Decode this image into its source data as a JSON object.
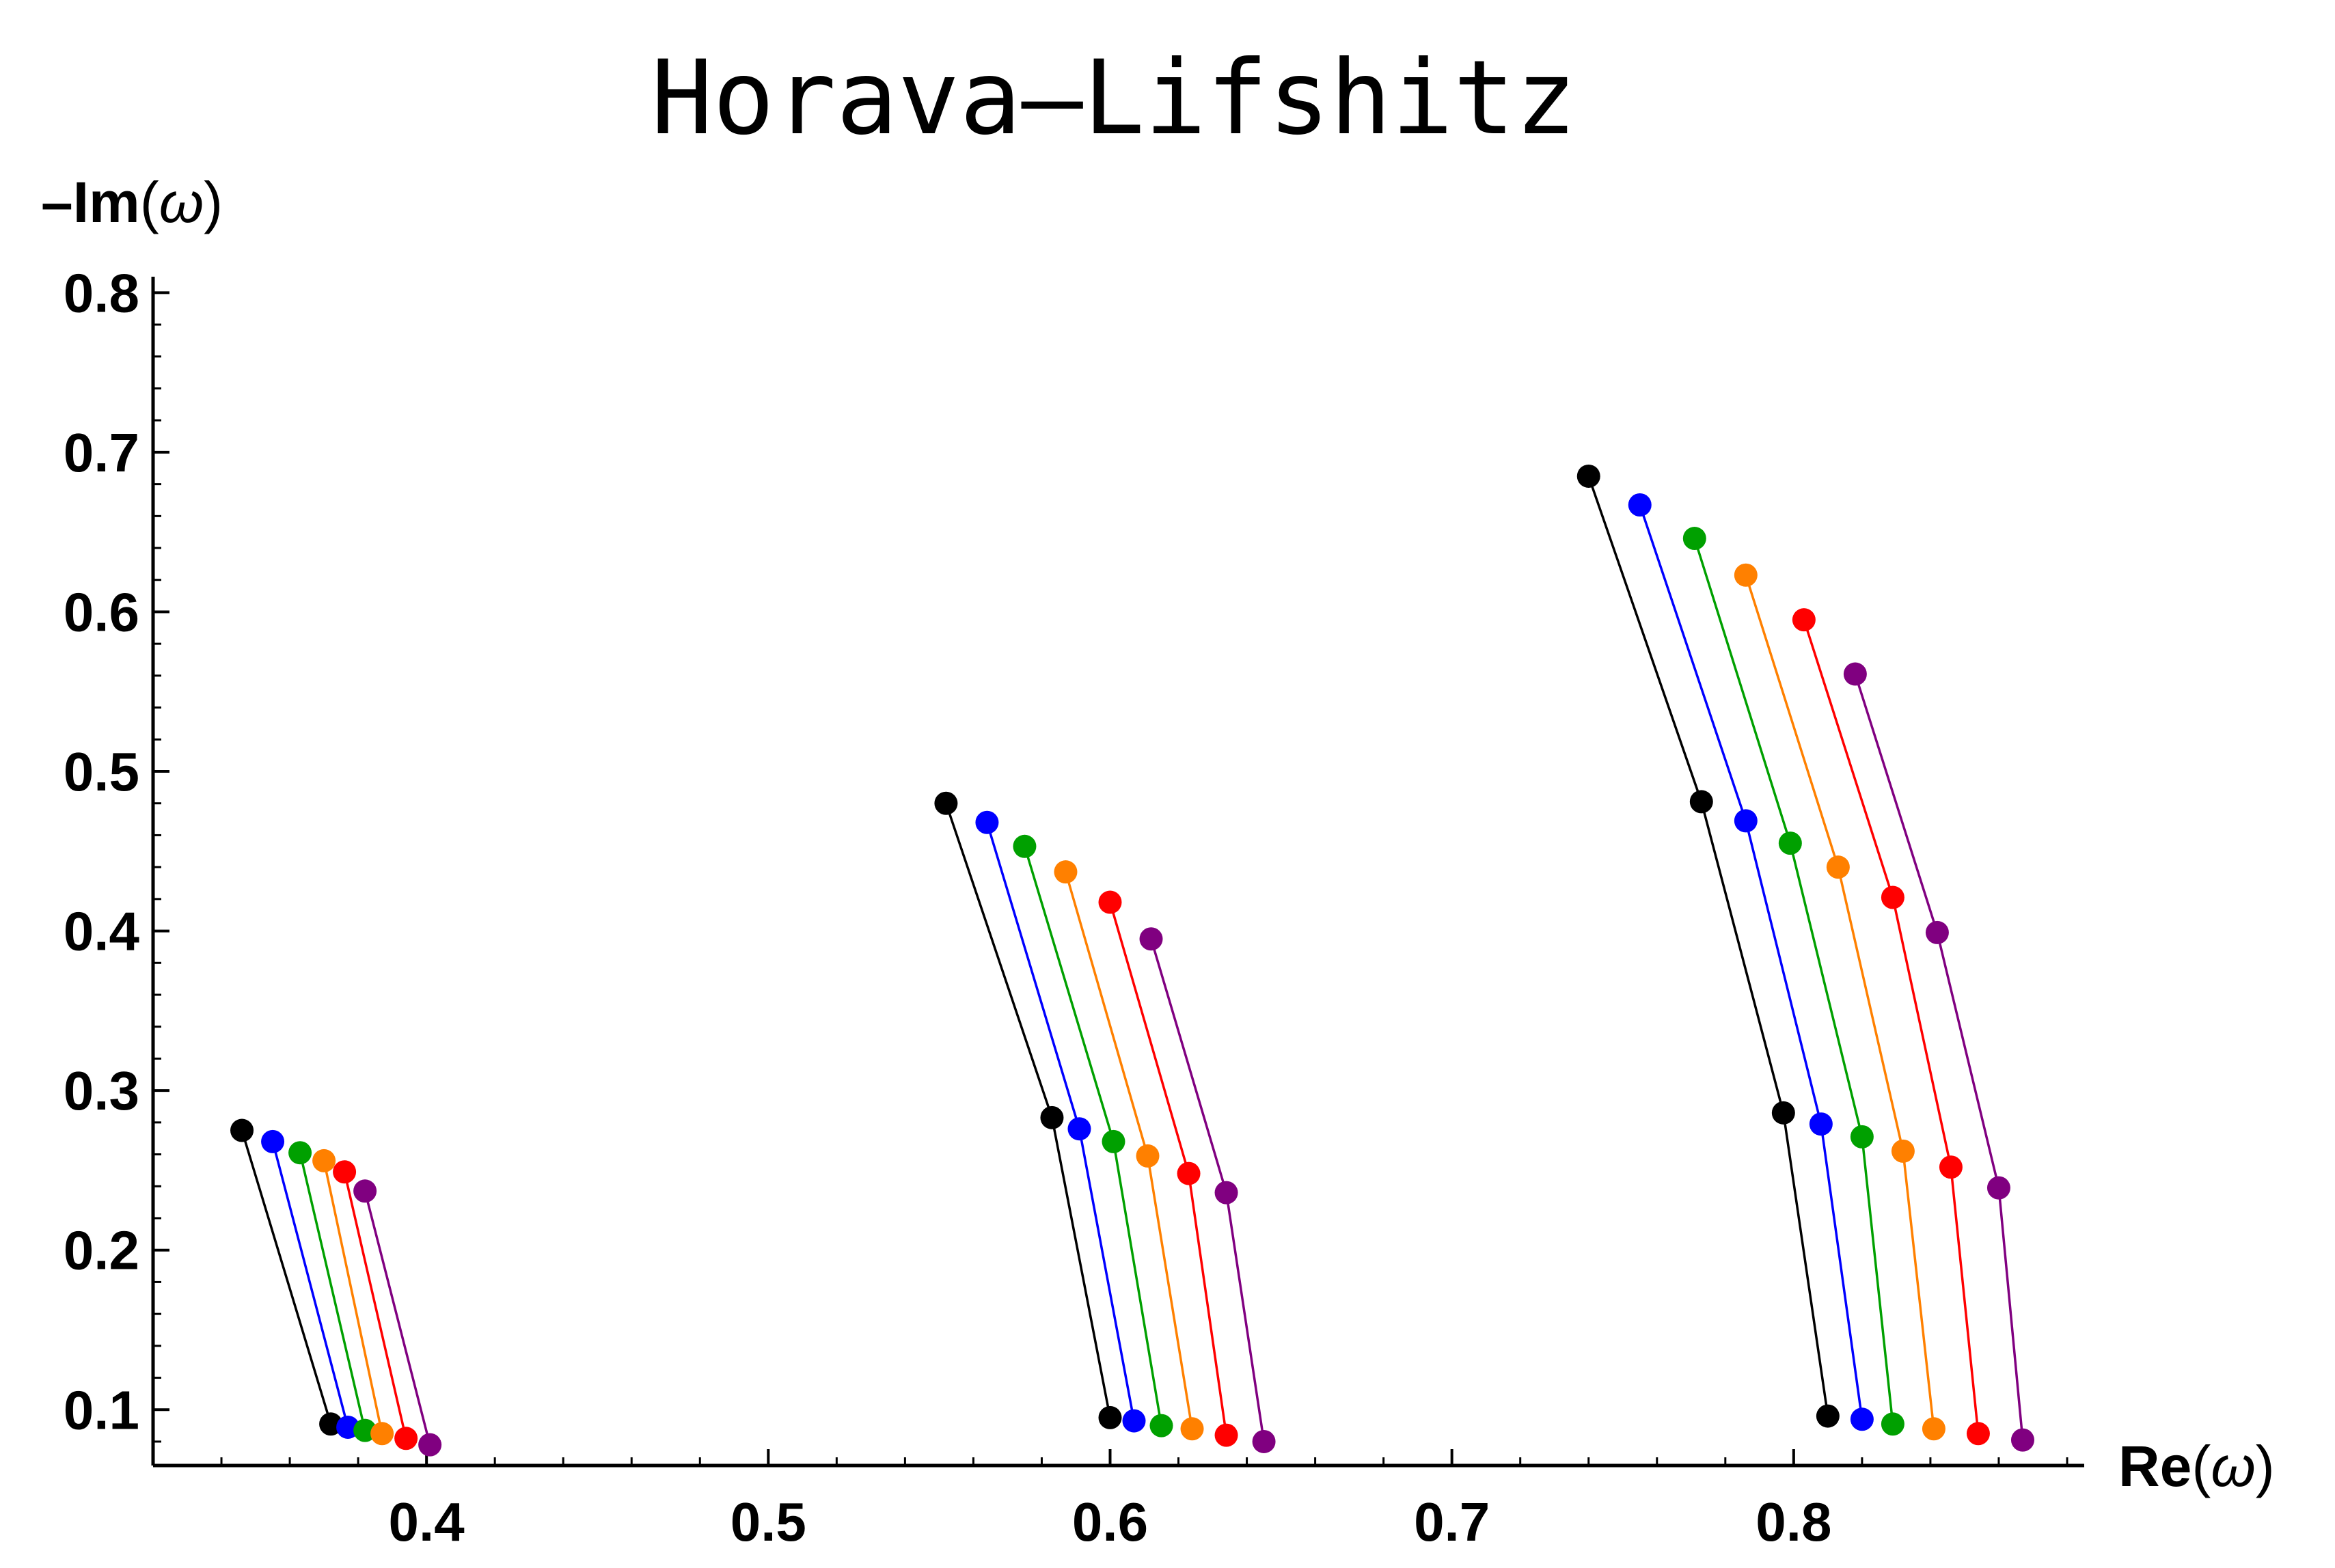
{
  "chart_data": {
    "type": "line",
    "title": "Horava–Lifshitz",
    "xlabel": {
      "bold": "Re",
      "symbol": "ω"
    },
    "ylabel": {
      "prefix": "–Im",
      "symbol": "ω"
    },
    "xlim": [
      0.32,
      0.885
    ],
    "ylim": [
      0.065,
      0.81
    ],
    "x_ticks": [
      "0.4",
      "0.5",
      "0.6",
      "0.7",
      "0.8"
    ],
    "y_ticks": [
      "0.1",
      "0.2",
      "0.3",
      "0.4",
      "0.5",
      "0.6",
      "0.7",
      "0.8"
    ],
    "grid": false,
    "markers": true,
    "series": [
      {
        "color": "#000000",
        "groups": [
          [
            [
              0.346,
              0.275
            ],
            [
              0.372,
              0.091
            ]
          ],
          [
            [
              0.552,
              0.48
            ],
            [
              0.583,
              0.283
            ],
            [
              0.6,
              0.095
            ]
          ],
          [
            [
              0.74,
              0.685
            ],
            [
              0.773,
              0.481
            ],
            [
              0.797,
              0.286
            ],
            [
              0.81,
              0.096
            ]
          ]
        ]
      },
      {
        "color": "#0000ff",
        "groups": [
          [
            [
              0.355,
              0.268
            ],
            [
              0.377,
              0.089
            ]
          ],
          [
            [
              0.564,
              0.468
            ],
            [
              0.591,
              0.276
            ],
            [
              0.607,
              0.093
            ]
          ],
          [
            [
              0.755,
              0.667
            ],
            [
              0.786,
              0.469
            ],
            [
              0.808,
              0.279
            ],
            [
              0.82,
              0.094
            ]
          ]
        ]
      },
      {
        "color": "#00a000",
        "groups": [
          [
            [
              0.363,
              0.261
            ],
            [
              0.382,
              0.087
            ]
          ],
          [
            [
              0.575,
              0.453
            ],
            [
              0.601,
              0.268
            ],
            [
              0.615,
              0.09
            ]
          ],
          [
            [
              0.771,
              0.646
            ],
            [
              0.799,
              0.455
            ],
            [
              0.82,
              0.271
            ],
            [
              0.829,
              0.091
            ]
          ]
        ]
      },
      {
        "color": "#ff8000",
        "groups": [
          [
            [
              0.37,
              0.256
            ],
            [
              0.387,
              0.085
            ]
          ],
          [
            [
              0.587,
              0.437
            ],
            [
              0.611,
              0.259
            ],
            [
              0.624,
              0.088
            ]
          ],
          [
            [
              0.786,
              0.623
            ],
            [
              0.813,
              0.44
            ],
            [
              0.832,
              0.262
            ],
            [
              0.841,
              0.088
            ]
          ]
        ]
      },
      {
        "color": "#ff0000",
        "groups": [
          [
            [
              0.376,
              0.249
            ],
            [
              0.394,
              0.082
            ]
          ],
          [
            [
              0.6,
              0.418
            ],
            [
              0.623,
              0.248
            ],
            [
              0.634,
              0.084
            ]
          ],
          [
            [
              0.803,
              0.595
            ],
            [
              0.829,
              0.421
            ],
            [
              0.846,
              0.252
            ],
            [
              0.854,
              0.085
            ]
          ]
        ]
      },
      {
        "color": "#800080",
        "groups": [
          [
            [
              0.382,
              0.237
            ],
            [
              0.401,
              0.078
            ]
          ],
          [
            [
              0.612,
              0.395
            ],
            [
              0.634,
              0.236
            ],
            [
              0.645,
              0.08
            ]
          ],
          [
            [
              0.818,
              0.561
            ],
            [
              0.842,
              0.399
            ],
            [
              0.86,
              0.239
            ],
            [
              0.867,
              0.081
            ]
          ]
        ]
      }
    ]
  }
}
